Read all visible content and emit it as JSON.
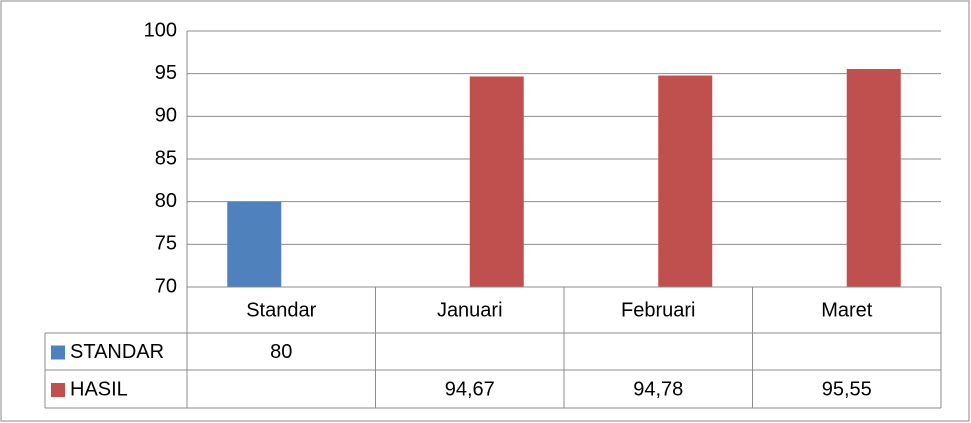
{
  "chart_data": {
    "type": "bar",
    "categories": [
      "Standar",
      "Januari",
      "Februari",
      "Maret"
    ],
    "series": [
      {
        "name": "STANDAR",
        "color": "#4f81bd",
        "values": [
          80,
          null,
          null,
          null
        ]
      },
      {
        "name": "HASIL",
        "color": "#c0504d",
        "values": [
          null,
          94.67,
          94.78,
          95.55
        ],
        "value_labels": [
          null,
          "94,67",
          "94,78",
          "95,55"
        ]
      }
    ],
    "ylim": [
      70,
      100
    ],
    "yticks": [
      70,
      75,
      80,
      85,
      90,
      95,
      100
    ],
    "grid": true,
    "data_table": true
  }
}
